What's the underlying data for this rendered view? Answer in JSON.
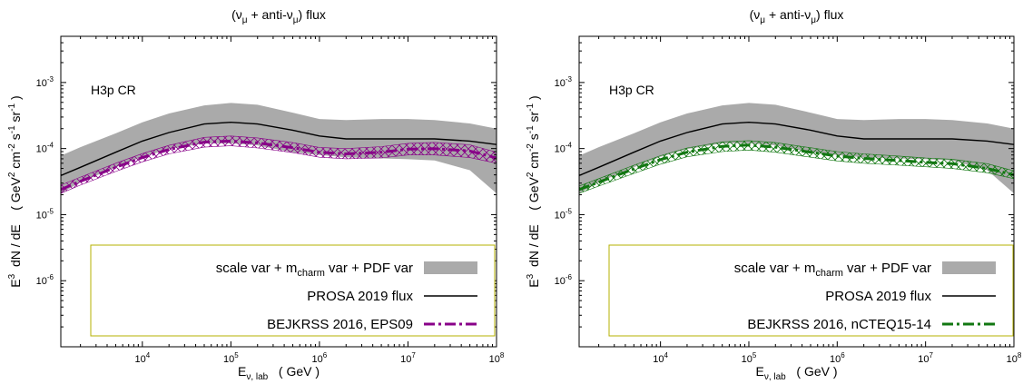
{
  "chart_data": [
    {
      "type": "line",
      "title": "(νμ + anti-νμ)  flux",
      "title_parts": {
        "open": "(ν",
        "sub1": "μ",
        "mid": " + anti-ν",
        "sub2": "μ",
        "close": ")  flux"
      },
      "xlabel": "Eν, lab   ( GeV )",
      "xlabel_parts": {
        "main": "E",
        "sub": "ν, lab",
        "unit": "( GeV )"
      },
      "ylabel": "E3  dN / dE    ( GeV2 cm-2 s-1 sr-1 )",
      "ylabel_parts": {
        "e": "E",
        "e_exp": "3",
        "dnde": "dN / dE",
        "open": "( GeV",
        "gev_exp": "2",
        "cm": " cm",
        "cm_exp": "-2",
        "s": " s",
        "s_exp": "-1",
        "sr": " sr",
        "sr_exp": "-1",
        "close": " )"
      },
      "x_scale": "log",
      "y_scale": "log",
      "xlim": [
        1200,
        100000000
      ],
      "ylim": [
        1e-07,
        0.005
      ],
      "x_ticks": [
        {
          "value": 10000,
          "base": "10",
          "exp": "4"
        },
        {
          "value": 100000,
          "base": "10",
          "exp": "5"
        },
        {
          "value": 1000000,
          "base": "10",
          "exp": "6"
        },
        {
          "value": 10000000,
          "base": "10",
          "exp": "7"
        },
        {
          "value": 100000000,
          "base": "10",
          "exp": "8"
        }
      ],
      "y_ticks": [
        {
          "value": 1e-06,
          "base": "10",
          "exp": "-6"
        },
        {
          "value": 1e-05,
          "base": "10",
          "exp": "-5"
        },
        {
          "value": 0.0001,
          "base": "10",
          "exp": "-4"
        },
        {
          "value": 0.001,
          "base": "10",
          "exp": "-3"
        }
      ],
      "annotation": "H3p CR",
      "legend_position": "bottom",
      "legend": [
        {
          "parts": {
            "a": "scale var + m",
            "sub": "charm",
            "b": " var + PDF var"
          },
          "style": "band"
        },
        {
          "parts": {
            "a": "PROSA 2019 flux",
            "sub": "",
            "b": ""
          },
          "style": "solid"
        },
        {
          "parts": {
            "a": "BEJKRSS 2016, EPS09",
            "sub": "",
            "b": ""
          },
          "style": "dashdot"
        }
      ],
      "x": [
        1200,
        2000,
        5000,
        10000,
        20000,
        50000,
        100000,
        200000,
        500000,
        1000000,
        2000000,
        5000000,
        10000000,
        20000000,
        50000000,
        100000000
      ],
      "series": [
        {
          "name": "scale var + mcharm var + PDF var",
          "style": "band",
          "color": "#aaaaaa",
          "lower": [
            2.1e-05,
            3.1e-05,
            5.2e-05,
            7.5e-05,
            9.8e-05,
            0.00012,
            0.00012,
            0.000112,
            8.8e-05,
            8e-05,
            7.4e-05,
            7.1e-05,
            6.9e-05,
            6.6e-05,
            4.7e-05,
            2.1e-05
          ],
          "upper": [
            7.8e-05,
            0.000105,
            0.00017,
            0.00025,
            0.00034,
            0.00045,
            0.00049,
            0.00046,
            0.00035,
            0.00028,
            0.00027,
            0.00028,
            0.00028,
            0.00027,
            0.00024,
            0.0002
          ]
        },
        {
          "name": "PROSA 2019 flux",
          "style": "solid",
          "color": "#000000",
          "values": [
            3.9e-05,
            5.2e-05,
            8.8e-05,
            0.00013,
            0.000175,
            0.000235,
            0.00025,
            0.000235,
            0.00019,
            0.000155,
            0.00014,
            0.00014,
            0.00014,
            0.00014,
            0.00013,
            0.000115
          ]
        },
        {
          "name": "BEJKRSS 2016, EPS09",
          "style": "dashdot",
          "color": "#880088",
          "hatch": true,
          "values": [
            2.4e-05,
            3.2e-05,
            5.2e-05,
            7.3e-05,
            9.7e-05,
            0.000125,
            0.00013,
            0.000122,
            0.000103,
            8.8e-05,
            8.3e-05,
            8.8e-05,
            9.8e-05,
            0.0001,
            9.2e-05,
            7.2e-05
          ],
          "lower": [
            2.1e-05,
            2.8e-05,
            4.5e-05,
            6.3e-05,
            8.3e-05,
            0.000105,
            0.00011,
            0.000102,
            8.7e-05,
            7.4e-05,
            7e-05,
            7.2e-05,
            8e-05,
            8e-05,
            7.3e-05,
            6e-05
          ],
          "upper": [
            2.8e-05,
            3.7e-05,
            6e-05,
            8.4e-05,
            0.000112,
            0.000148,
            0.000155,
            0.000145,
            0.000123,
            0.000104,
            0.0001,
            0.000107,
            0.00012,
            0.000124,
            0.000114,
            8.8e-05
          ]
        }
      ]
    },
    {
      "type": "line",
      "title": "(νμ + anti-νμ)  flux",
      "title_parts": {
        "open": "(ν",
        "sub1": "μ",
        "mid": " + anti-ν",
        "sub2": "μ",
        "close": ")  flux"
      },
      "xlabel": "Eν, lab   ( GeV )",
      "xlabel_parts": {
        "main": "E",
        "sub": "ν, lab",
        "unit": "( GeV )"
      },
      "ylabel": "E3  dN / dE    ( GeV2 cm-2 s-1 sr-1 )",
      "ylabel_parts": {
        "e": "E",
        "e_exp": "3",
        "dnde": "dN / dE",
        "open": "( GeV",
        "gev_exp": "2",
        "cm": " cm",
        "cm_exp": "-2",
        "s": " s",
        "s_exp": "-1",
        "sr": " sr",
        "sr_exp": "-1",
        "close": " )"
      },
      "x_scale": "log",
      "y_scale": "log",
      "xlim": [
        1200,
        100000000
      ],
      "ylim": [
        1e-07,
        0.005
      ],
      "x_ticks": [
        {
          "value": 10000,
          "base": "10",
          "exp": "4"
        },
        {
          "value": 100000,
          "base": "10",
          "exp": "5"
        },
        {
          "value": 1000000,
          "base": "10",
          "exp": "6"
        },
        {
          "value": 10000000,
          "base": "10",
          "exp": "7"
        },
        {
          "value": 100000000,
          "base": "10",
          "exp": "8"
        }
      ],
      "y_ticks": [
        {
          "value": 1e-06,
          "base": "10",
          "exp": "-6"
        },
        {
          "value": 1e-05,
          "base": "10",
          "exp": "-5"
        },
        {
          "value": 0.0001,
          "base": "10",
          "exp": "-4"
        },
        {
          "value": 0.001,
          "base": "10",
          "exp": "-3"
        }
      ],
      "annotation": "H3p CR",
      "legend_position": "bottom",
      "legend": [
        {
          "parts": {
            "a": "scale var + m",
            "sub": "charm",
            "b": " var + PDF var"
          },
          "style": "band"
        },
        {
          "parts": {
            "a": "PROSA 2019 flux",
            "sub": "",
            "b": ""
          },
          "style": "solid"
        },
        {
          "parts": {
            "a": "BEJKRSS 2016, nCTEQ15-14",
            "sub": "",
            "b": ""
          },
          "style": "dashdot"
        }
      ],
      "x": [
        1200,
        2000,
        5000,
        10000,
        20000,
        50000,
        100000,
        200000,
        500000,
        1000000,
        2000000,
        5000000,
        10000000,
        20000000,
        50000000,
        100000000
      ],
      "series": [
        {
          "name": "scale var + mcharm var + PDF var",
          "style": "band",
          "color": "#aaaaaa",
          "lower": [
            2.1e-05,
            3.1e-05,
            5.2e-05,
            7.5e-05,
            9.8e-05,
            0.00012,
            0.00012,
            0.000112,
            8.8e-05,
            8e-05,
            7.4e-05,
            7.1e-05,
            6.9e-05,
            6.6e-05,
            4.7e-05,
            2.1e-05
          ],
          "upper": [
            7.8e-05,
            0.000105,
            0.00017,
            0.00025,
            0.00034,
            0.00045,
            0.00049,
            0.00046,
            0.00035,
            0.00028,
            0.00027,
            0.00028,
            0.00028,
            0.00027,
            0.00024,
            0.0002
          ]
        },
        {
          "name": "PROSA 2019 flux",
          "style": "solid",
          "color": "#000000",
          "values": [
            3.9e-05,
            5.2e-05,
            8.8e-05,
            0.00013,
            0.000175,
            0.000235,
            0.00025,
            0.000235,
            0.00019,
            0.000155,
            0.00014,
            0.00014,
            0.00014,
            0.00014,
            0.00013,
            0.000115
          ]
        },
        {
          "name": "BEJKRSS 2016, nCTEQ15-14",
          "style": "dashdot",
          "color": "#117711",
          "hatch": true,
          "values": [
            2.4e-05,
            3.1e-05,
            4.9e-05,
            6.8e-05,
            8.8e-05,
            0.000108,
            0.000113,
            0.000105,
            8.8e-05,
            7.7e-05,
            7.1e-05,
            6.6e-05,
            6.2e-05,
            5.9e-05,
            5e-05,
            4e-05
          ],
          "lower": [
            2.1e-05,
            2.7e-05,
            4.2e-05,
            5.8e-05,
            7.5e-05,
            9e-05,
            9.5e-05,
            8.8e-05,
            7.4e-05,
            6.5e-05,
            6e-05,
            5.6e-05,
            5.3e-05,
            5e-05,
            4.3e-05,
            3.5e-05
          ],
          "upper": [
            2.7e-05,
            3.5e-05,
            5.6e-05,
            7.8e-05,
            0.000102,
            0.000126,
            0.000132,
            0.000123,
            0.000103,
            9e-05,
            8.3e-05,
            7.7e-05,
            7.2e-05,
            6.9e-05,
            5.9e-05,
            4.6e-05
          ]
        }
      ]
    }
  ]
}
